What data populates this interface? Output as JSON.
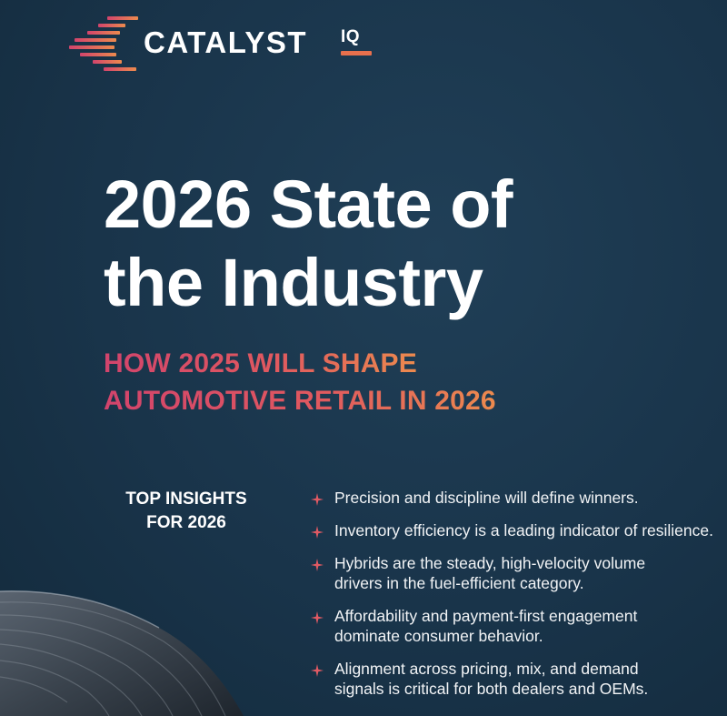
{
  "brand": {
    "name": "CATALYST",
    "suffix": "IQ",
    "colors": {
      "pink": "#d2446c",
      "orange": "#ec8a4e",
      "background": "#19344a"
    }
  },
  "title": {
    "line1": "2026 State of",
    "line2": "the Industry"
  },
  "subtitle": {
    "line1": "HOW 2025 WILL SHAPE",
    "line2": "AUTOMOTIVE RETAIL IN 2026"
  },
  "insights": {
    "heading_line1": "TOP INSIGHTS",
    "heading_line2": "FOR 2026",
    "bullet_icon": "sparkle-star-icon",
    "items": [
      {
        "line1": "Precision and discipline will define winners.",
        "line2": ""
      },
      {
        "line1": "Inventory efficiency is a leading indicator of resilience.",
        "line2": ""
      },
      {
        "line1": "Hybrids are the steady, high-velocity volume",
        "line2": "drivers in the fuel-efficient category."
      },
      {
        "line1": "Affordability and payment-first engagement",
        "line2": "dominate consumer behavior."
      },
      {
        "line1": "Alignment across pricing, mix, and demand",
        "line2": "signals is critical for both dealers and OEMs."
      }
    ]
  }
}
